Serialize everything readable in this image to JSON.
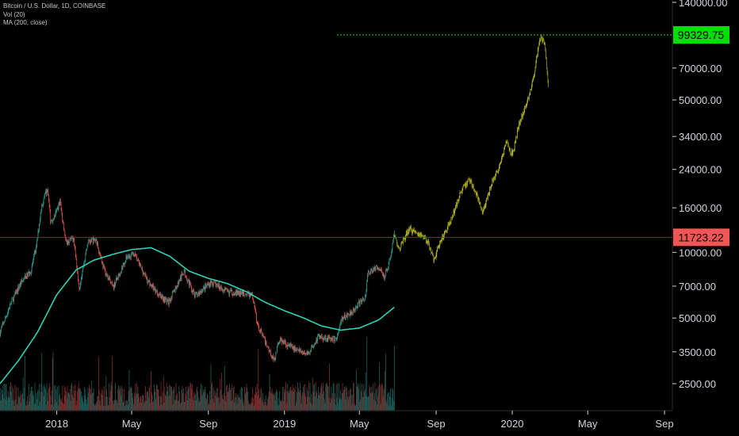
{
  "legend": {
    "symbol": "Bitcoin / U.S. Dollar, 1D, COINBASE",
    "volume": "Vol (20)",
    "ma": "MA (200, close)"
  },
  "colors": {
    "background": "#000000",
    "candle_up": "#26a69a",
    "candle_down": "#ef5350",
    "projection": "#c8c827",
    "ma": "#2ed3b7",
    "target_line": "#22dd22",
    "target_label_bg": "#00e000",
    "current_line": "#8b2b2b",
    "current_label_bg": "#f05656"
  },
  "chart_data": {
    "type": "line",
    "scale": "log",
    "y_ticks": [
      "140000.00",
      "70000.00",
      "50000.00",
      "34000.00",
      "24000.00",
      "16000.00",
      "10000.00",
      "7000.00",
      "5000.00",
      "3500.00",
      "2500.00"
    ],
    "y_tick_values": [
      140000,
      70000,
      50000,
      34000,
      24000,
      16000,
      10000,
      7000,
      5000,
      3500,
      2500
    ],
    "x_ticks": [
      "2018",
      "May",
      "Sep",
      "2019",
      "May",
      "Sep",
      "2020",
      "May",
      "Sep"
    ],
    "x_tick_dates": [
      "2018-01-01",
      "2018-05-01",
      "2018-09-01",
      "2019-01-01",
      "2019-05-01",
      "2019-09-01",
      "2020-01-01",
      "2020-05-01",
      "2020-09-01"
    ],
    "horizontal_levels": [
      {
        "label": "99329.75",
        "value": 99329.75
      },
      {
        "label": "11723.22",
        "value": 11723.22
      }
    ],
    "series": [
      {
        "kind": "price",
        "points": [
          [
            "2017-10-02",
            4300
          ],
          [
            "2017-10-20",
            5900
          ],
          [
            "2017-11-05",
            7300
          ],
          [
            "2017-11-20",
            8200
          ],
          [
            "2017-11-29",
            10500
          ],
          [
            "2017-12-07",
            16000
          ],
          [
            "2017-12-17",
            19800
          ],
          [
            "2017-12-22",
            14000
          ],
          [
            "2017-12-28",
            14500
          ],
          [
            "2018-01-06",
            17100
          ],
          [
            "2018-01-16",
            11000
          ],
          [
            "2018-01-28",
            11700
          ],
          [
            "2018-02-06",
            6900
          ],
          [
            "2018-02-20",
            11200
          ],
          [
            "2018-03-05",
            11400
          ],
          [
            "2018-03-18",
            8300
          ],
          [
            "2018-04-01",
            6900
          ],
          [
            "2018-04-24",
            9600
          ],
          [
            "2018-05-05",
            9800
          ],
          [
            "2018-05-28",
            7300
          ],
          [
            "2018-06-12",
            6500
          ],
          [
            "2018-06-29",
            5900
          ],
          [
            "2018-07-24",
            8200
          ],
          [
            "2018-08-10",
            6300
          ],
          [
            "2018-09-05",
            7300
          ],
          [
            "2018-10-01",
            6600
          ],
          [
            "2018-11-10",
            6400
          ],
          [
            "2018-11-19",
            4600
          ],
          [
            "2018-12-15",
            3200
          ],
          [
            "2018-12-24",
            4000
          ],
          [
            "2019-01-10",
            3700
          ],
          [
            "2019-02-07",
            3400
          ],
          [
            "2019-02-24",
            4100
          ],
          [
            "2019-03-25",
            4000
          ],
          [
            "2019-04-02",
            4900
          ],
          [
            "2019-04-23",
            5500
          ],
          [
            "2019-05-11",
            6300
          ],
          [
            "2019-05-14",
            8000
          ],
          [
            "2019-05-30",
            8600
          ],
          [
            "2019-06-10",
            7800
          ],
          [
            "2019-06-20",
            9500
          ],
          [
            "2019-06-26",
            12500
          ]
        ]
      },
      {
        "kind": "projection",
        "points": [
          [
            "2019-06-26",
            11700
          ],
          [
            "2019-07-05",
            10500
          ],
          [
            "2019-07-20",
            12800
          ],
          [
            "2019-08-05",
            12200
          ],
          [
            "2019-08-20",
            11000
          ],
          [
            "2019-08-28",
            9300
          ],
          [
            "2019-09-10",
            11500
          ],
          [
            "2019-09-25",
            14000
          ],
          [
            "2019-10-10",
            18800
          ],
          [
            "2019-10-25",
            21500
          ],
          [
            "2019-11-05",
            18500
          ],
          [
            "2019-11-15",
            15000
          ],
          [
            "2019-11-28",
            20500
          ],
          [
            "2019-12-12",
            25000
          ],
          [
            "2019-12-22",
            32000
          ],
          [
            "2020-01-01",
            28000
          ],
          [
            "2020-01-12",
            39000
          ],
          [
            "2020-01-24",
            48000
          ],
          [
            "2020-02-03",
            62000
          ],
          [
            "2020-02-10",
            80000
          ],
          [
            "2020-02-16",
            99329.75
          ],
          [
            "2020-02-22",
            88000
          ],
          [
            "2020-02-28",
            57000
          ]
        ]
      },
      {
        "kind": "ma",
        "name": "MA (200, close)",
        "points": [
          [
            "2017-10-02",
            2500
          ],
          [
            "2017-11-01",
            3200
          ],
          [
            "2017-12-01",
            4300
          ],
          [
            "2018-01-01",
            6400
          ],
          [
            "2018-02-01",
            8300
          ],
          [
            "2018-03-01",
            9200
          ],
          [
            "2018-04-01",
            9800
          ],
          [
            "2018-05-01",
            10300
          ],
          [
            "2018-06-01",
            10500
          ],
          [
            "2018-07-01",
            9600
          ],
          [
            "2018-08-01",
            8200
          ],
          [
            "2018-09-01",
            7600
          ],
          [
            "2018-10-01",
            7200
          ],
          [
            "2018-11-01",
            6600
          ],
          [
            "2018-12-01",
            5900
          ],
          [
            "2019-01-01",
            5400
          ],
          [
            "2019-02-01",
            5000
          ],
          [
            "2019-03-01",
            4600
          ],
          [
            "2019-04-01",
            4400
          ],
          [
            "2019-05-01",
            4500
          ],
          [
            "2019-06-01",
            4900
          ],
          [
            "2019-06-26",
            5600
          ]
        ]
      }
    ],
    "volume": {
      "end": "2019-06-26",
      "max_height_share": 0.25
    }
  }
}
